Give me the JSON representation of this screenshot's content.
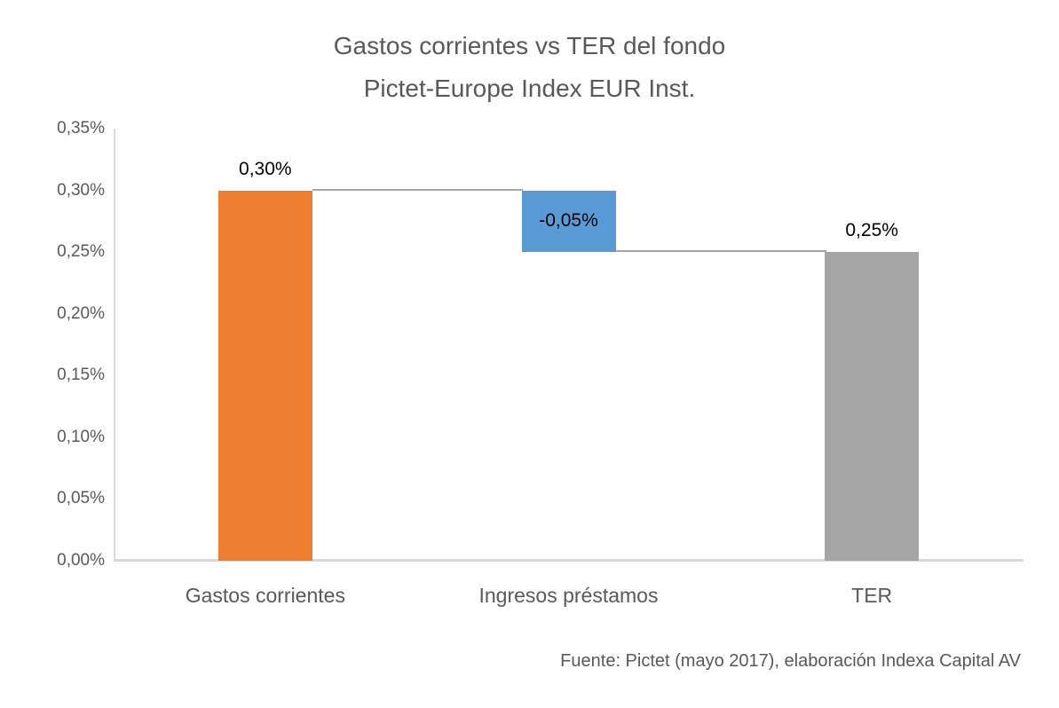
{
  "title": {
    "line1": "Gastos corrientes vs TER del fondo",
    "line2": "Pictet-Europe Index EUR Inst."
  },
  "source_note": "Fuente: Pictet (mayo 2017), elaboración Indexa Capital AV",
  "colors": {
    "bar_increase": "#ED7D31",
    "bar_decrease": "#5B9BD5",
    "bar_total": "#A5A5A5",
    "connector": "#A6A6A6",
    "axis_line": "#D9D9D9",
    "label_text": "#595959",
    "data_label_text": "#000000"
  },
  "chart_data": {
    "type": "bar",
    "subtype": "waterfall",
    "title": "Gastos corrientes vs TER del fondo Pictet-Europe Index EUR Inst.",
    "categories": [
      "Gastos corrientes",
      "Ingresos préstamos",
      "TER"
    ],
    "values": [
      0.3,
      -0.05,
      0.25
    ],
    "bar_labels": [
      "0,30%",
      "-0,05%",
      "0,25%"
    ],
    "bar_segments": [
      [
        0,
        0.3
      ],
      [
        0.25,
        0.3
      ],
      [
        0,
        0.25
      ]
    ],
    "bar_colors": [
      "#ED7D31",
      "#5B9BD5",
      "#A5A5A5"
    ],
    "label_positions": [
      "above",
      "inside",
      "above"
    ],
    "connectors": [
      {
        "level": 0.3,
        "from_bar": 0,
        "to_bar": 1
      },
      {
        "level": 0.25,
        "from_bar": 1,
        "to_bar": 2
      }
    ],
    "ylim": [
      0,
      0.35
    ],
    "yticks": [
      "0,00%",
      "0,05%",
      "0,10%",
      "0,15%",
      "0,20%",
      "0,25%",
      "0,30%",
      "0,35%"
    ],
    "unit": "percent",
    "grid": false,
    "legend": false,
    "source": "Fuente: Pictet (mayo 2017), elaboración Indexa Capital AV"
  }
}
